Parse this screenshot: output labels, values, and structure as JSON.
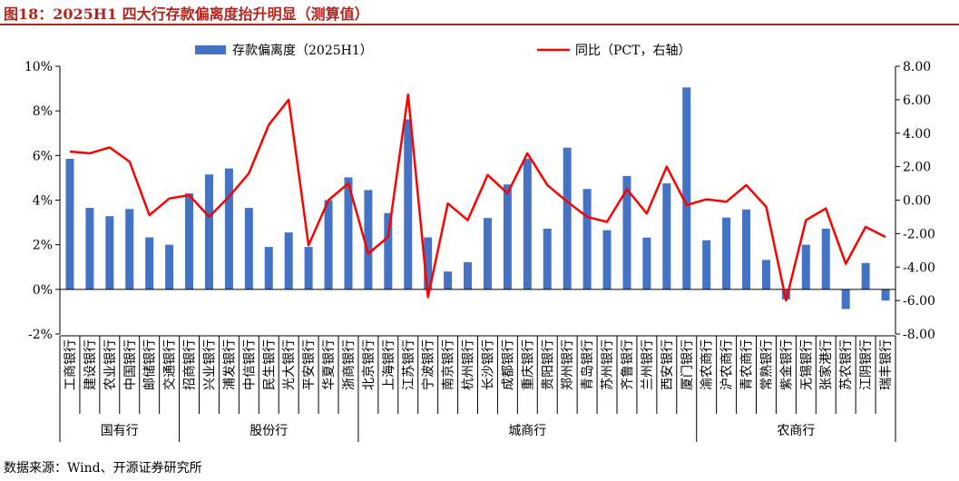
{
  "header": {
    "title": "图18：2025H1 四大行存款偏离度抬升明显（测算值）"
  },
  "footer": {
    "source": "数据来源：Wind、开源证券研究所"
  },
  "colors": {
    "bar": "#4472c4",
    "line": "#ff0000",
    "title": "#b4231c"
  },
  "chart_data": {
    "type": "bar+line",
    "title": "",
    "legend_placement": "top-center",
    "categories": [
      "工商银行",
      "建设银行",
      "农业银行",
      "中国银行",
      "邮储银行",
      "交通银行",
      "招商银行",
      "兴业银行",
      "浦发银行",
      "中信银行",
      "民生银行",
      "光大银行",
      "平安银行",
      "华夏银行",
      "浙商银行",
      "北京银行",
      "上海银行",
      "江苏银行",
      "宁波银行",
      "南京银行",
      "杭州银行",
      "长沙银行",
      "成都银行",
      "重庆银行",
      "贵阳银行",
      "郑州银行",
      "青岛银行",
      "苏州银行",
      "齐鲁银行",
      "兰州银行",
      "西安银行",
      "厦门银行",
      "渝农商行",
      "沪农商行",
      "青农商行",
      "常熟银行",
      "紫金银行",
      "无锡银行",
      "张家港行",
      "苏农银行",
      "江阴银行",
      "瑞丰银行"
    ],
    "groups": [
      {
        "label": "国有行",
        "start": 0,
        "end": 5
      },
      {
        "label": "股份行",
        "start": 6,
        "end": 14
      },
      {
        "label": "城商行",
        "start": 15,
        "end": 31
      },
      {
        "label": "农商行",
        "start": 32,
        "end": 41
      }
    ],
    "series": [
      {
        "name": "存款偏离度（2025H1）",
        "type": "bar",
        "axis": "left",
        "values": [
          5.85,
          3.65,
          3.28,
          3.6,
          2.33,
          2.0,
          4.3,
          5.15,
          5.42,
          3.65,
          1.9,
          2.55,
          1.9,
          4.0,
          5.02,
          4.45,
          3.42,
          7.62,
          2.33,
          0.8,
          1.22,
          3.2,
          4.7,
          5.85,
          2.72,
          6.35,
          4.5,
          2.65,
          5.08,
          2.32,
          4.75,
          9.05,
          2.2,
          3.22,
          3.58,
          1.32,
          -0.45,
          2.0,
          2.72,
          -0.88,
          1.18,
          -0.5
        ]
      },
      {
        "name": "同比（PCT，右轴）",
        "type": "line",
        "axis": "right",
        "values": [
          2.9,
          2.8,
          3.15,
          2.3,
          -0.9,
          0.1,
          0.3,
          -1.0,
          0.2,
          1.6,
          4.5,
          6.0,
          -2.7,
          0.0,
          1.0,
          -3.2,
          -2.2,
          6.3,
          -5.8,
          -0.2,
          -1.2,
          1.5,
          0.4,
          2.8,
          0.9,
          -0.1,
          -1.0,
          -1.3,
          0.65,
          -0.8,
          2.0,
          -0.3,
          0.05,
          -0.1,
          0.9,
          -0.4,
          -6.0,
          -1.2,
          -0.5,
          -3.8,
          -1.6,
          -2.2
        ]
      }
    ],
    "y_left": {
      "min": -0.02,
      "max": 0.1,
      "ticks": [
        "-2%",
        "0%",
        "2%",
        "4%",
        "6%",
        "8%",
        "10%"
      ]
    },
    "y_right": {
      "min": -8,
      "max": 8,
      "ticks": [
        "-8.00",
        "-6.00",
        "-4.00",
        "-2.00",
        "0.00",
        "2.00",
        "4.00",
        "6.00",
        "8.00"
      ]
    },
    "grid": false
  }
}
